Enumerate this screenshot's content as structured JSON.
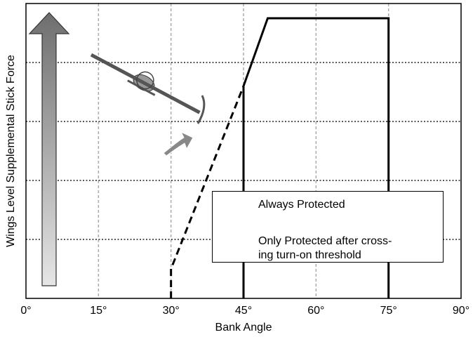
{
  "chart_data": {
    "type": "line",
    "x_label": "Bank Angle",
    "y_label": "Wings Level Supplemental Stick Force",
    "xlim": [
      0,
      90
    ],
    "xticks": [
      {
        "value": 0,
        "label": "0°"
      },
      {
        "value": 15,
        "label": "15°"
      },
      {
        "value": 30,
        "label": "30°"
      },
      {
        "value": 45,
        "label": "45°"
      },
      {
        "value": 60,
        "label": "60°"
      },
      {
        "value": 75,
        "label": "75°"
      },
      {
        "value": 90,
        "label": "90°"
      }
    ],
    "ylim": [
      0,
      5
    ],
    "ygrid": [
      1,
      2,
      3,
      4
    ],
    "grid": true,
    "series": [
      {
        "name": "Always Protected",
        "color": "#000000",
        "dash": "solid",
        "x": [
          45,
          45,
          50,
          75,
          75
        ],
        "values": [
          0,
          3.6,
          4.75,
          4.75,
          0
        ]
      },
      {
        "name": "Only Protected after cross-\ning turn-on threshold",
        "color": "#000000",
        "dash": "dashed",
        "x": [
          30,
          30,
          45
        ],
        "values": [
          0,
          0.5,
          3.6
        ]
      }
    ]
  }
}
